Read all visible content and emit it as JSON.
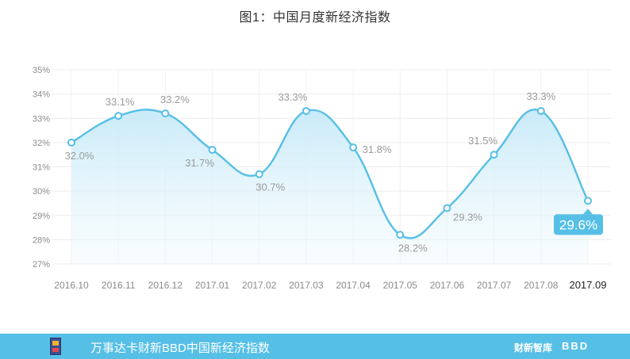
{
  "chart_data": {
    "type": "area",
    "title": "图1：中国月度新经济指数",
    "categories": [
      "2016.10",
      "2016.11",
      "2016.12",
      "2017.01",
      "2017.02",
      "2017.03",
      "2017.04",
      "2017.05",
      "2017.06",
      "2017.07",
      "2017.08",
      "2017.09"
    ],
    "values": [
      32.0,
      33.1,
      33.2,
      31.7,
      30.7,
      33.3,
      31.8,
      28.2,
      29.3,
      31.5,
      33.3,
      29.6
    ],
    "value_labels": [
      "32.0%",
      "33.1%",
      "33.2%",
      "31.7%",
      "30.7%",
      "33.3%",
      "31.8%",
      "28.2%",
      "29.3%",
      "31.5%",
      "33.3%",
      "29.6%"
    ],
    "highlight": {
      "index": 11,
      "label": "29.6%"
    },
    "y_ticks": [
      "27%",
      "28%",
      "29%",
      "30%",
      "31%",
      "32%",
      "33%",
      "34%",
      "35%"
    ],
    "ylim": [
      27,
      35
    ],
    "grid": true,
    "line_color": "#56bfe6",
    "fill_color": "#d8f0fa"
  },
  "footer": {
    "text": "万事达卡财新BBD中国新经济指数",
    "brand_cn": "财新智库",
    "brand_en": "BBD",
    "background": "#56bfe6"
  }
}
